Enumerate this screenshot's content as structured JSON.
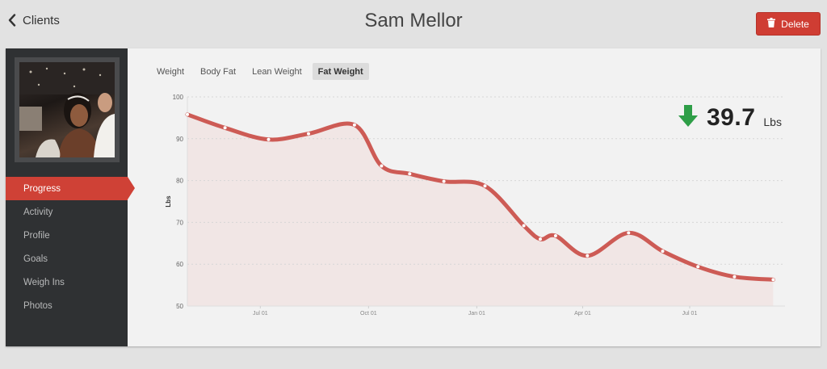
{
  "header": {
    "back_label": "Clients",
    "title": "Sam Mellor",
    "delete_label": "Delete"
  },
  "sidebar": {
    "items": [
      {
        "label": "Progress",
        "active": true
      },
      {
        "label": "Activity",
        "active": false
      },
      {
        "label": "Profile",
        "active": false
      },
      {
        "label": "Goals",
        "active": false
      },
      {
        "label": "Weigh Ins",
        "active": false
      },
      {
        "label": "Photos",
        "active": false
      }
    ]
  },
  "tabs": [
    {
      "label": "Weight",
      "active": false
    },
    {
      "label": "Body Fat",
      "active": false
    },
    {
      "label": "Lean Weight",
      "active": false
    },
    {
      "label": "Fat Weight",
      "active": true
    }
  ],
  "summary": {
    "direction": "down",
    "value": "39.7",
    "unit": "Lbs",
    "arrow_icon": "arrow-down-icon",
    "arrow_color": "#2e9e47"
  },
  "colors": {
    "accent": "#cf4136",
    "line": "#cd5b55",
    "fill": "#f1e4e3",
    "delete": "#cf3d33"
  },
  "chart_data": {
    "type": "area",
    "ylabel": "Lbs",
    "xlabel": "",
    "ylim": [
      50,
      100
    ],
    "y_ticks": [
      100,
      90,
      80,
      70,
      60,
      50
    ],
    "x_range": [
      "2013-04-30",
      "2014-09-20"
    ],
    "x_ticks": [
      {
        "label": "Jul 01",
        "date": "2013-07-01"
      },
      {
        "label": "Oct 01",
        "date": "2013-10-01"
      },
      {
        "label": "Jan 01",
        "date": "2014-01-01"
      },
      {
        "label": "Apr 01",
        "date": "2014-04-01"
      },
      {
        "label": "Jul 01",
        "date": "2014-07-01"
      }
    ],
    "grid": true,
    "series": [
      {
        "points": [
          {
            "x": "2013-04-30",
            "y": 95.8
          },
          {
            "x": "2013-06-01",
            "y": 92.6
          },
          {
            "x": "2013-07-08",
            "y": 89.8
          },
          {
            "x": "2013-08-11",
            "y": 91.2
          },
          {
            "x": "2013-09-19",
            "y": 93.3
          },
          {
            "x": "2013-10-12",
            "y": 83.5
          },
          {
            "x": "2013-11-05",
            "y": 81.6
          },
          {
            "x": "2013-12-04",
            "y": 79.8
          },
          {
            "x": "2014-01-08",
            "y": 78.7
          },
          {
            "x": "2014-02-10",
            "y": 69.2
          },
          {
            "x": "2014-02-24",
            "y": 66.0
          },
          {
            "x": "2014-03-09",
            "y": 66.8
          },
          {
            "x": "2014-04-05",
            "y": 62.0
          },
          {
            "x": "2014-05-10",
            "y": 67.5
          },
          {
            "x": "2014-06-08",
            "y": 63.1
          },
          {
            "x": "2014-07-08",
            "y": 59.4
          },
          {
            "x": "2014-08-08",
            "y": 57.0
          },
          {
            "x": "2014-09-10",
            "y": 56.3
          }
        ]
      }
    ]
  }
}
